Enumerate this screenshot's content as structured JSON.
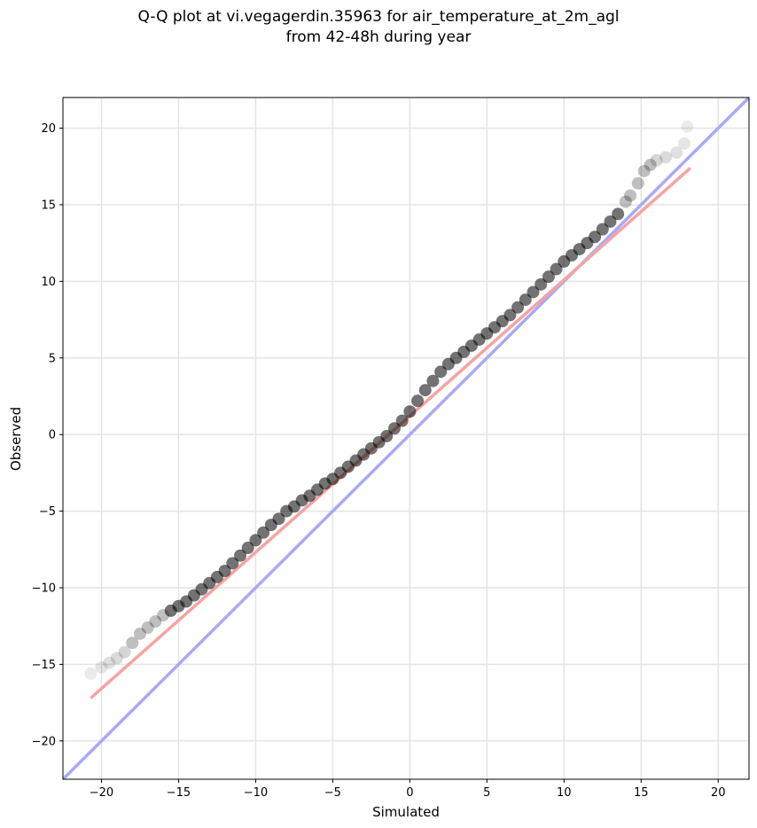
{
  "chart_data": {
    "type": "scatter",
    "title_line1": "Q-Q plot at vi.vegagerdin.35963 for air_temperature_at_2m_agl",
    "title_line2": "from 42-48h during year",
    "xlabel": "Simulated",
    "ylabel": "Observed",
    "xlim": [
      -22.5,
      22
    ],
    "ylim": [
      -22.5,
      22
    ],
    "xticks": [
      -20,
      -15,
      -10,
      -5,
      0,
      5,
      10,
      15,
      20
    ],
    "yticks": [
      -20,
      -15,
      -10,
      -5,
      0,
      5,
      10,
      15,
      20
    ],
    "xtick_labels": [
      "−20",
      "−15",
      "−10",
      "−5",
      "0",
      "5",
      "10",
      "15",
      "20"
    ],
    "ytick_labels": [
      "−20",
      "−15",
      "−10",
      "−5",
      "0",
      "5",
      "10",
      "15",
      "20"
    ],
    "grid": true,
    "quantiles": {
      "x": [
        -20.7,
        -20.0,
        -19.5,
        -19.0,
        -18.5,
        -18.0,
        -17.5,
        -17.0,
        -16.5,
        -16.0,
        -15.5,
        -15.0,
        -14.5,
        -14.0,
        -13.5,
        -13.0,
        -12.5,
        -12.0,
        -11.5,
        -11.0,
        -10.5,
        -10.0,
        -9.5,
        -9.0,
        -8.5,
        -8.0,
        -7.5,
        -7.0,
        -6.5,
        -6.0,
        -5.5,
        -5.0,
        -4.5,
        -4.0,
        -3.5,
        -3.0,
        -2.5,
        -2.0,
        -1.5,
        -1.0,
        -0.5,
        0.0,
        0.5,
        1.0,
        1.5,
        2.0,
        2.5,
        3.0,
        3.5,
        4.0,
        4.5,
        5.0,
        5.5,
        6.0,
        6.5,
        7.0,
        7.5,
        8.0,
        8.5,
        9.0,
        9.5,
        10.0,
        10.5,
        11.0,
        11.5,
        12.0,
        12.5,
        13.0,
        13.5,
        14.0,
        14.3,
        14.8,
        15.2,
        15.6,
        16.0,
        16.6,
        17.3,
        17.8,
        18.0
      ],
      "y": [
        -15.6,
        -15.2,
        -14.9,
        -14.6,
        -14.2,
        -13.6,
        -13.0,
        -12.6,
        -12.2,
        -11.8,
        -11.5,
        -11.2,
        -10.9,
        -10.5,
        -10.1,
        -9.7,
        -9.3,
        -8.9,
        -8.4,
        -7.9,
        -7.4,
        -6.9,
        -6.4,
        -5.9,
        -5.5,
        -5.0,
        -4.7,
        -4.3,
        -4.0,
        -3.6,
        -3.2,
        -2.9,
        -2.5,
        -2.1,
        -1.7,
        -1.3,
        -0.9,
        -0.5,
        -0.1,
        0.4,
        0.9,
        1.5,
        2.2,
        2.9,
        3.5,
        4.1,
        4.6,
        5.0,
        5.4,
        5.8,
        6.2,
        6.6,
        7.0,
        7.4,
        7.8,
        8.3,
        8.8,
        9.3,
        9.8,
        10.3,
        10.8,
        11.3,
        11.7,
        12.1,
        12.5,
        12.9,
        13.4,
        13.9,
        14.4,
        15.2,
        15.6,
        16.4,
        17.2,
        17.6,
        17.9,
        18.1,
        18.4,
        19.0,
        20.1
      ]
    },
    "identity_line": {
      "color": "#a9a9f5",
      "x": [
        -22.5,
        22
      ],
      "y": [
        -22.5,
        22
      ]
    },
    "fit_line": {
      "color": "#f5a3a3",
      "x": [
        -20.7,
        18.2
      ],
      "y": [
        -17.2,
        17.4
      ]
    },
    "point_color": "#000000"
  }
}
